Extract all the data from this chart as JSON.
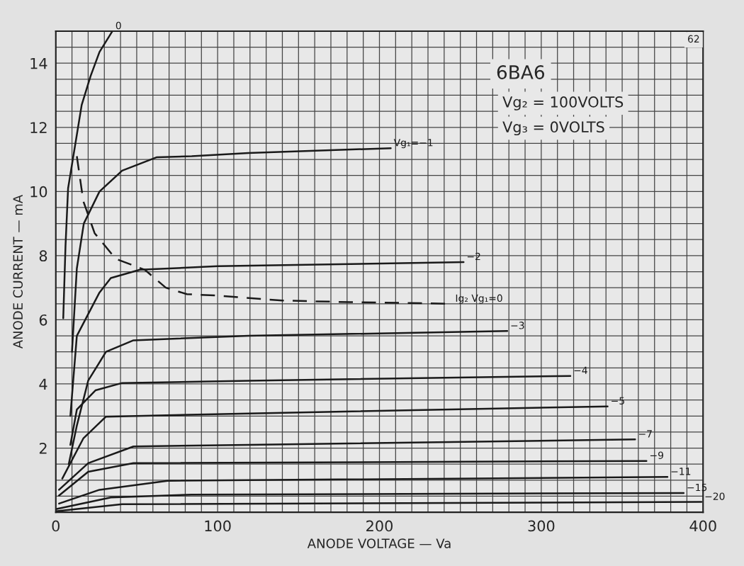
{
  "chart_data": {
    "type": "line",
    "title": "6BA6",
    "xlabel": "ANODE VOLTAGE — Va",
    "ylabel": "ANODE CURRENT — mA",
    "annotations": [
      "Vg₂ = 100VOLTS",
      "Vg₃ = 0VOLTS",
      "62"
    ],
    "xlim": [
      0,
      400
    ],
    "ylim": [
      0,
      15
    ],
    "xticks": [
      0,
      {
        "value": 10,
        "label": null
      },
      {
        "value": 20,
        "label": null
      },
      {
        "value": 30,
        "label": null
      },
      {
        "value": 40,
        "label": null
      },
      {
        "value": 50,
        "label": null
      },
      {
        "value": 60,
        "label": null
      },
      {
        "value": 70,
        "label": null
      },
      {
        "value": 80,
        "label": null
      },
      {
        "value": 90,
        "label": null
      },
      100,
      {
        "value": 110,
        "label": null
      },
      {
        "value": 120,
        "label": null
      },
      {
        "value": 130,
        "label": null
      },
      {
        "value": 140,
        "label": null
      },
      {
        "value": 150,
        "label": null
      },
      {
        "value": 160,
        "label": null
      },
      {
        "value": 170,
        "label": null
      },
      {
        "value": 180,
        "label": null
      },
      {
        "value": 190,
        "label": null
      },
      200,
      {
        "value": 210,
        "label": null
      },
      {
        "value": 220,
        "label": null
      },
      {
        "value": 230,
        "label": null
      },
      {
        "value": 240,
        "label": null
      },
      {
        "value": 250,
        "label": null
      },
      {
        "value": 260,
        "label": null
      },
      {
        "value": 270,
        "label": null
      },
      {
        "value": 280,
        "label": null
      },
      {
        "value": 290,
        "label": null
      },
      300,
      {
        "value": 310,
        "label": null
      },
      {
        "value": 320,
        "label": null
      },
      {
        "value": 330,
        "label": null
      },
      {
        "value": 340,
        "label": null
      },
      {
        "value": 350,
        "label": null
      },
      {
        "value": 360,
        "label": null
      },
      {
        "value": 370,
        "label": null
      },
      {
        "value": 380,
        "label": null
      },
      {
        "value": 390,
        "label": null
      },
      400
    ],
    "yticks": [
      {
        "value": 0.5,
        "label": null
      },
      {
        "value": 1,
        "label": null
      },
      {
        "value": 1.5,
        "label": null
      },
      2,
      {
        "value": 2.5,
        "label": null
      },
      {
        "value": 3,
        "label": null
      },
      {
        "value": 3.5,
        "label": null
      },
      4,
      {
        "value": 4.5,
        "label": null
      },
      {
        "value": 5,
        "label": null
      },
      {
        "value": 5.5,
        "label": null
      },
      6,
      {
        "value": 6.5,
        "label": null
      },
      {
        "value": 7,
        "label": null
      },
      {
        "value": 7.5,
        "label": null
      },
      8,
      {
        "value": 8.5,
        "label": null
      },
      {
        "value": 9,
        "label": null
      },
      {
        "value": 9.5,
        "label": null
      },
      10,
      {
        "value": 10.5,
        "label": null
      },
      {
        "value": 11,
        "label": null
      },
      {
        "value": 11.5,
        "label": null
      },
      12,
      {
        "value": 12.5,
        "label": null
      },
      {
        "value": 13,
        "label": null
      },
      {
        "value": 13.5,
        "label": null
      },
      14,
      {
        "value": 14.5,
        "label": null
      }
    ],
    "grid": true,
    "legend": false,
    "series": [
      {
        "name": "0",
        "color": "#1a1a1a",
        "x": [
          4.6,
          6,
          7.6,
          11.8,
          16,
          21.5,
          27,
          35
        ],
        "values": [
          6.05,
          8.3,
          10.1,
          11.4,
          12.7,
          13.6,
          14.35,
          15
        ]
      },
      {
        "name": "Vg₁=−1",
        "color": "#1a1a1a",
        "x": [
          10,
          13,
          17.3,
          27,
          41,
          62.5,
          84,
          119,
          207
        ],
        "values": [
          5.0,
          7.6,
          9.0,
          10.0,
          10.65,
          11.07,
          11.1,
          11.2,
          11.35
        ]
      },
      {
        "name": "Ig₂ Vg₁=0",
        "color": "#1a1a1a",
        "line_style": "dashed",
        "x": [
          13,
          17,
          24,
          37,
          55,
          68,
          81,
          98,
          140,
          182,
          245
        ],
        "values": [
          11.1,
          9.7,
          8.7,
          7.9,
          7.56,
          7.0,
          6.8,
          6.76,
          6.6,
          6.55,
          6.5
        ]
      },
      {
        "name": "−2",
        "color": "#1a1a1a",
        "x": [
          9,
          13,
          27,
          34,
          52,
          100,
          252
        ],
        "values": [
          3.0,
          5.5,
          6.85,
          7.3,
          7.56,
          7.67,
          7.8
        ]
      },
      {
        "name": "−3",
        "color": "#1a1a1a",
        "x": [
          8,
          13,
          20,
          31,
          48,
          119,
          279
        ],
        "values": [
          1.5,
          2.7,
          4.1,
          5.0,
          5.36,
          5.5,
          5.65
        ]
      },
      {
        "name": "−4",
        "color": "#1a1a1a",
        "x": [
          9,
          13,
          24.5,
          41,
          119,
          318
        ],
        "values": [
          2.1,
          3.2,
          3.8,
          4.03,
          4.1,
          4.25
        ]
      },
      {
        "name": "−5",
        "color": "#1a1a1a",
        "x": [
          4,
          17,
          31,
          119,
          341
        ],
        "values": [
          1.05,
          2.3,
          2.98,
          3.08,
          3.3
        ]
      },
      {
        "name": "−7",
        "color": "#1a1a1a",
        "x": [
          2,
          20,
          48,
          119,
          358
        ],
        "values": [
          0.7,
          1.53,
          2.05,
          2.1,
          2.27
        ]
      },
      {
        "name": "−9",
        "color": "#1a1a1a",
        "x": [
          2,
          20,
          48,
          365
        ],
        "values": [
          0.52,
          1.26,
          1.53,
          1.6
        ]
      },
      {
        "name": "−11",
        "color": "#1a1a1a",
        "x": [
          2,
          27,
          69,
          378
        ],
        "values": [
          0.27,
          0.7,
          0.98,
          1.1
        ]
      },
      {
        "name": "−15",
        "color": "#1a1a1a",
        "x": [
          0.5,
          34,
          84,
          388
        ],
        "values": [
          0.1,
          0.46,
          0.55,
          0.6
        ]
      },
      {
        "name": "−20",
        "color": "#1a1a1a",
        "x": [
          0,
          41,
          399
        ],
        "values": [
          0.03,
          0.25,
          0.32
        ]
      }
    ]
  }
}
